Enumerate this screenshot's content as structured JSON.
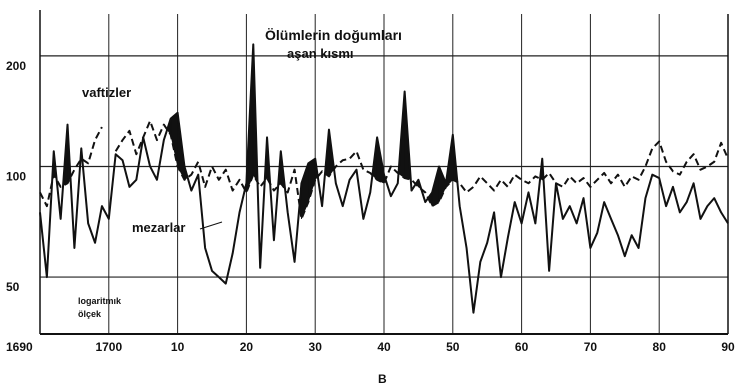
{
  "chart_data": {
    "type": "line",
    "title": "",
    "subtitle": "",
    "caption": "B",
    "xlabel": "",
    "ylabel": "",
    "y_scale": "log",
    "y_scale_note": [
      "logaritmık",
      "ölçek"
    ],
    "ylim": [
      35,
      260
    ],
    "xlim": [
      1690,
      1790
    ],
    "grid": true,
    "x_ticks": [
      {
        "value": 1690,
        "label": "1690"
      },
      {
        "value": 1700,
        "label": "1700"
      },
      {
        "value": 1710,
        "label": "10"
      },
      {
        "value": 1720,
        "label": "20"
      },
      {
        "value": 1730,
        "label": "30"
      },
      {
        "value": 1740,
        "label": "40"
      },
      {
        "value": 1750,
        "label": "50"
      },
      {
        "value": 1760,
        "label": "60"
      },
      {
        "value": 1770,
        "label": "70"
      },
      {
        "value": 1780,
        "label": "80"
      },
      {
        "value": 1790,
        "label": "90"
      }
    ],
    "y_ticks": [
      {
        "value": 200,
        "label": "200"
      },
      {
        "value": 100,
        "label": "100"
      },
      {
        "value": 50,
        "label": "50"
      }
    ],
    "annotations": {
      "excess_deaths": [
        "Ölümlerin doğumları",
        "aşan kısmı"
      ]
    },
    "series": [
      {
        "name": "vaftizler",
        "style": "dashed",
        "points": [
          [
            1690,
            85
          ],
          [
            1691,
            78
          ],
          [
            1692,
            95
          ],
          [
            1693,
            88
          ],
          [
            1694,
            90
          ],
          [
            1695,
            98
          ],
          [
            1696,
            105
          ],
          [
            1697,
            102
          ],
          [
            1698,
            118
          ],
          [
            1699,
            128
          ],
          [
            1701,
            110
          ],
          [
            1702,
            118
          ],
          [
            1703,
            125
          ],
          [
            1704,
            108
          ],
          [
            1705,
            120
          ],
          [
            1706,
            133
          ],
          [
            1707,
            118
          ],
          [
            1708,
            130
          ],
          [
            1709,
            122
          ],
          [
            1710,
            100
          ],
          [
            1711,
            92
          ],
          [
            1712,
            95
          ],
          [
            1713,
            103
          ],
          [
            1714,
            88
          ],
          [
            1715,
            100
          ],
          [
            1716,
            92
          ],
          [
            1717,
            98
          ],
          [
            1718,
            86
          ],
          [
            1719,
            92
          ],
          [
            1720,
            85
          ],
          [
            1721,
            95
          ],
          [
            1722,
            88
          ],
          [
            1723,
            93
          ],
          [
            1724,
            86
          ],
          [
            1725,
            90
          ],
          [
            1726,
            85
          ],
          [
            1727,
            98
          ],
          [
            1728,
            72
          ],
          [
            1729,
            80
          ],
          [
            1730,
            92
          ],
          [
            1731,
            97
          ],
          [
            1732,
            94
          ],
          [
            1733,
            100
          ],
          [
            1734,
            104
          ],
          [
            1735,
            105
          ],
          [
            1736,
            110
          ],
          [
            1737,
            98
          ],
          [
            1738,
            96
          ],
          [
            1739,
            92
          ],
          [
            1740,
            90
          ],
          [
            1741,
            100
          ],
          [
            1742,
            96
          ],
          [
            1743,
            93
          ],
          [
            1744,
            92
          ],
          [
            1745,
            88
          ],
          [
            1746,
            85
          ],
          [
            1747,
            78
          ],
          [
            1748,
            80
          ],
          [
            1749,
            88
          ],
          [
            1750,
            92
          ],
          [
            1751,
            90
          ],
          [
            1752,
            85
          ],
          [
            1753,
            88
          ],
          [
            1754,
            94
          ],
          [
            1755,
            90
          ],
          [
            1756,
            86
          ],
          [
            1757,
            92
          ],
          [
            1758,
            88
          ],
          [
            1759,
            95
          ],
          [
            1760,
            92
          ],
          [
            1761,
            90
          ],
          [
            1762,
            94
          ],
          [
            1763,
            92
          ],
          [
            1764,
            96
          ],
          [
            1765,
            90
          ],
          [
            1766,
            88
          ],
          [
            1767,
            94
          ],
          [
            1768,
            90
          ],
          [
            1769,
            93
          ],
          [
            1770,
            88
          ],
          [
            1771,
            92
          ],
          [
            1772,
            96
          ],
          [
            1773,
            90
          ],
          [
            1774,
            95
          ],
          [
            1775,
            88
          ],
          [
            1776,
            94
          ],
          [
            1777,
            92
          ],
          [
            1778,
            100
          ],
          [
            1779,
            112
          ],
          [
            1780,
            117
          ],
          [
            1781,
            103
          ],
          [
            1782,
            97
          ],
          [
            1783,
            95
          ],
          [
            1784,
            103
          ],
          [
            1785,
            108
          ],
          [
            1786,
            98
          ],
          [
            1787,
            100
          ],
          [
            1788,
            103
          ],
          [
            1789,
            116
          ],
          [
            1790,
            105
          ]
        ]
      },
      {
        "name": "mezarlar",
        "style": "solid",
        "points": [
          [
            1690,
            75
          ],
          [
            1691,
            50
          ],
          [
            1692,
            110
          ],
          [
            1693,
            72
          ],
          [
            1694,
            130
          ],
          [
            1695,
            60
          ],
          [
            1696,
            112
          ],
          [
            1697,
            70
          ],
          [
            1698,
            62
          ],
          [
            1699,
            78
          ],
          [
            1700,
            72
          ],
          [
            1701,
            108
          ],
          [
            1702,
            104
          ],
          [
            1703,
            88
          ],
          [
            1704,
            92
          ],
          [
            1705,
            120
          ],
          [
            1706,
            100
          ],
          [
            1707,
            92
          ],
          [
            1708,
            118
          ],
          [
            1709,
            135
          ],
          [
            1710,
            140
          ],
          [
            1711,
            100
          ],
          [
            1712,
            86
          ],
          [
            1713,
            95
          ],
          [
            1714,
            60
          ],
          [
            1715,
            52
          ],
          [
            1716,
            50
          ],
          [
            1717,
            48
          ],
          [
            1718,
            58
          ],
          [
            1719,
            75
          ],
          [
            1720,
            90
          ],
          [
            1721,
            215
          ],
          [
            1722,
            53
          ],
          [
            1723,
            120
          ],
          [
            1724,
            63
          ],
          [
            1725,
            110
          ],
          [
            1726,
            75
          ],
          [
            1727,
            55
          ],
          [
            1728,
            90
          ],
          [
            1729,
            102
          ],
          [
            1730,
            105
          ],
          [
            1731,
            78
          ],
          [
            1732,
            126
          ],
          [
            1733,
            90
          ],
          [
            1734,
            78
          ],
          [
            1735,
            92
          ],
          [
            1736,
            98
          ],
          [
            1737,
            72
          ],
          [
            1738,
            85
          ],
          [
            1739,
            120
          ],
          [
            1740,
            95
          ],
          [
            1741,
            83
          ],
          [
            1742,
            90
          ],
          [
            1743,
            160
          ],
          [
            1744,
            86
          ],
          [
            1745,
            92
          ],
          [
            1746,
            80
          ],
          [
            1747,
            85
          ],
          [
            1748,
            100
          ],
          [
            1749,
            90
          ],
          [
            1750,
            122
          ],
          [
            1751,
            78
          ],
          [
            1752,
            60
          ],
          [
            1753,
            40
          ],
          [
            1754,
            55
          ],
          [
            1755,
            62
          ],
          [
            1756,
            75
          ],
          [
            1757,
            50
          ],
          [
            1758,
            64
          ],
          [
            1759,
            80
          ],
          [
            1760,
            70
          ],
          [
            1761,
            85
          ],
          [
            1762,
            70
          ],
          [
            1763,
            105
          ],
          [
            1764,
            52
          ],
          [
            1765,
            90
          ],
          [
            1766,
            72
          ],
          [
            1767,
            78
          ],
          [
            1768,
            70
          ],
          [
            1769,
            82
          ],
          [
            1770,
            60
          ],
          [
            1771,
            66
          ],
          [
            1772,
            80
          ],
          [
            1773,
            72
          ],
          [
            1774,
            65
          ],
          [
            1775,
            57
          ],
          [
            1776,
            65
          ],
          [
            1777,
            60
          ],
          [
            1778,
            82
          ],
          [
            1779,
            95
          ],
          [
            1780,
            93
          ],
          [
            1781,
            78
          ],
          [
            1782,
            88
          ],
          [
            1783,
            75
          ],
          [
            1784,
            80
          ],
          [
            1785,
            90
          ],
          [
            1786,
            72
          ],
          [
            1787,
            78
          ],
          [
            1788,
            82
          ],
          [
            1789,
            75
          ],
          [
            1790,
            70
          ]
        ]
      }
    ]
  }
}
